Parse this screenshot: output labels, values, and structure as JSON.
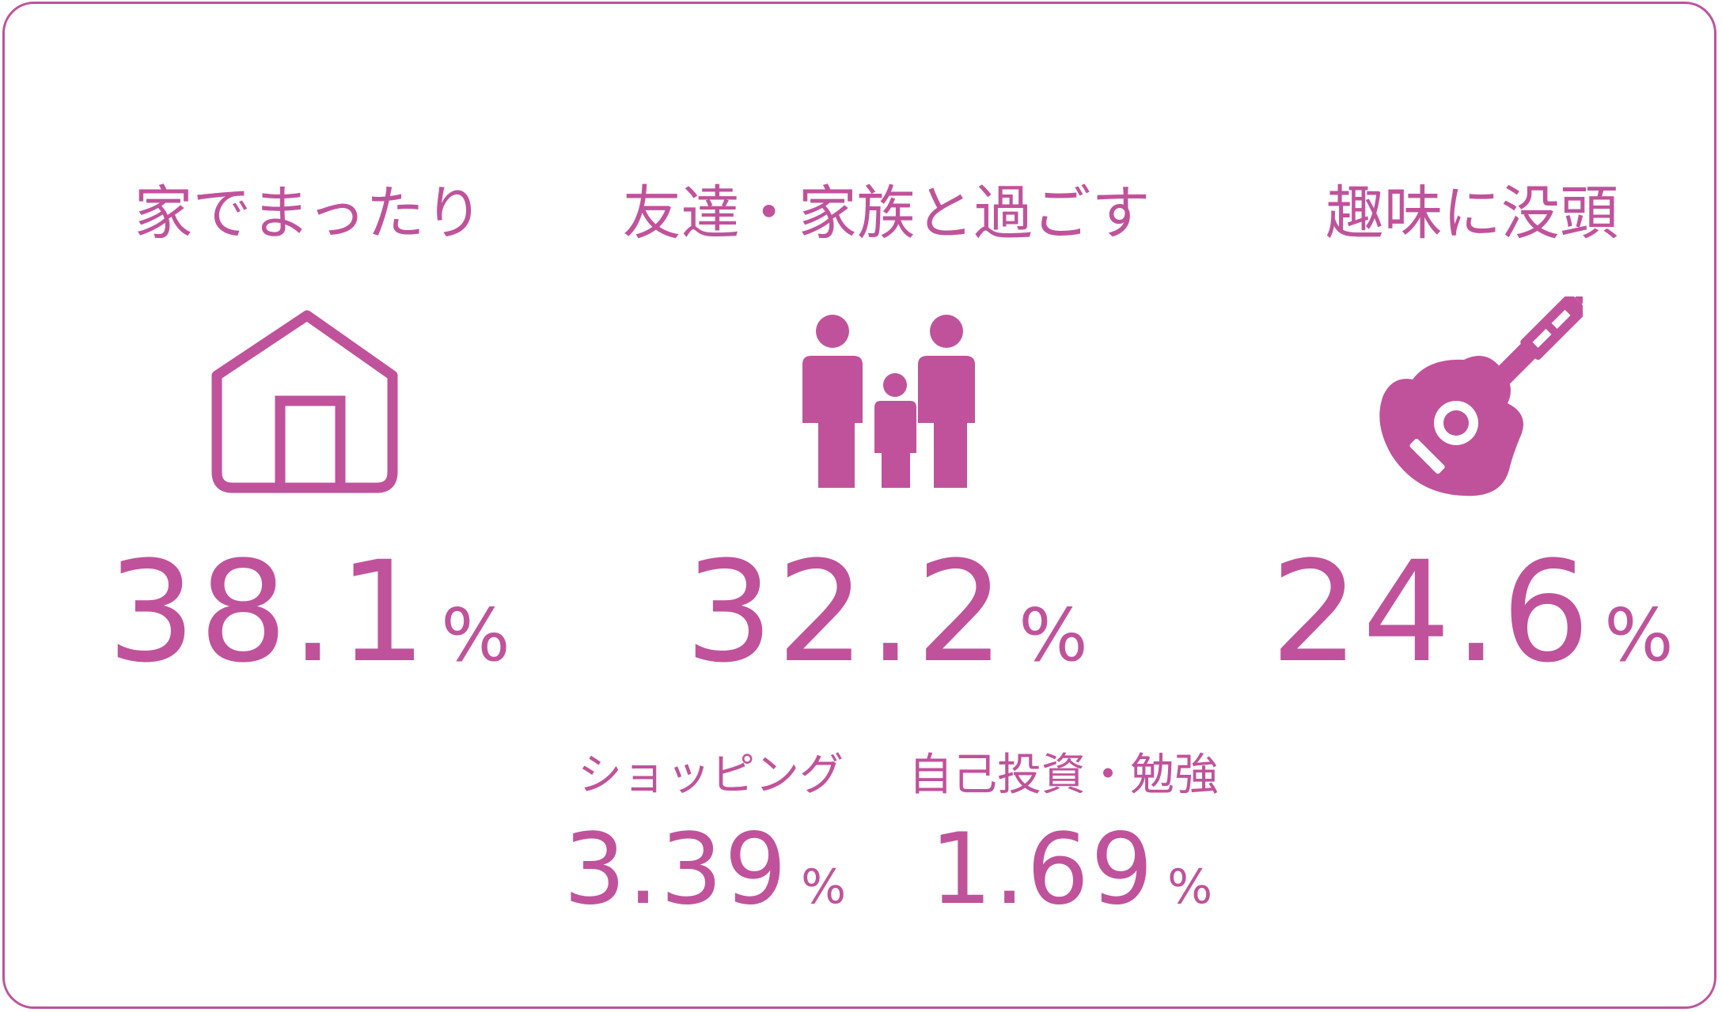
{
  "accent_color": "#c0529b",
  "items": [
    {
      "label": "家でまったり",
      "icon": "house-icon",
      "value": "38.1",
      "unit": "%"
    },
    {
      "label": "友達・家族と過ごす",
      "icon": "family-icon",
      "value": "32.2",
      "unit": "%"
    },
    {
      "label": "趣味に没頭",
      "icon": "guitar-icon",
      "value": "24.6",
      "unit": "%"
    }
  ],
  "minor_items": [
    {
      "label": "ショッピング",
      "value": "3.39",
      "unit": "%"
    },
    {
      "label": "自己投資・勉強",
      "value": "1.69",
      "unit": "%"
    }
  ]
}
